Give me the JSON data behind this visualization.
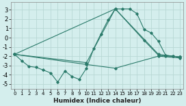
{
  "xlabel": "Humidex (Indice chaleur)",
  "bg_color": "#d4eeed",
  "grid_color": "#b8d8d4",
  "line_color": "#2a7a6a",
  "xlim": [
    -0.5,
    23.5
  ],
  "ylim": [
    -5.5,
    3.8
  ],
  "yticks": [
    -5,
    -4,
    -3,
    -2,
    -1,
    0,
    1,
    2,
    3
  ],
  "xticks": [
    0,
    1,
    2,
    3,
    4,
    5,
    6,
    7,
    8,
    9,
    10,
    11,
    12,
    13,
    14,
    15,
    16,
    17,
    18,
    19,
    20,
    21,
    22,
    23
  ],
  "lines": [
    {
      "x": [
        0,
        1,
        2,
        3,
        4,
        5,
        6,
        7,
        8,
        9,
        10,
        11,
        12,
        13,
        14,
        15,
        16,
        17,
        18,
        19,
        20,
        21,
        22,
        23
      ],
      "y": [
        -1.8,
        -2.5,
        -3.1,
        -3.2,
        -3.5,
        -3.8,
        -4.8,
        -3.6,
        -4.2,
        -4.5,
        -3.3,
        -1.2,
        0.4,
        1.9,
        3.1,
        3.1,
        3.1,
        2.6,
        0.9,
        0.5,
        -0.4,
        -1.9,
        -2.0,
        -2.1
      ]
    },
    {
      "x": [
        0,
        14,
        18,
        20,
        21,
        22,
        23
      ],
      "y": [
        -1.8,
        3.1,
        -0.3,
        -1.9,
        -2.0,
        -2.0,
        -2.1
      ]
    },
    {
      "x": [
        0,
        10,
        14,
        20,
        23
      ],
      "y": [
        -1.8,
        -2.7,
        3.1,
        -1.8,
        -2.1
      ]
    },
    {
      "x": [
        0,
        10,
        14,
        20,
        23
      ],
      "y": [
        -1.8,
        -2.9,
        -3.3,
        -2.0,
        -2.2
      ]
    }
  ]
}
